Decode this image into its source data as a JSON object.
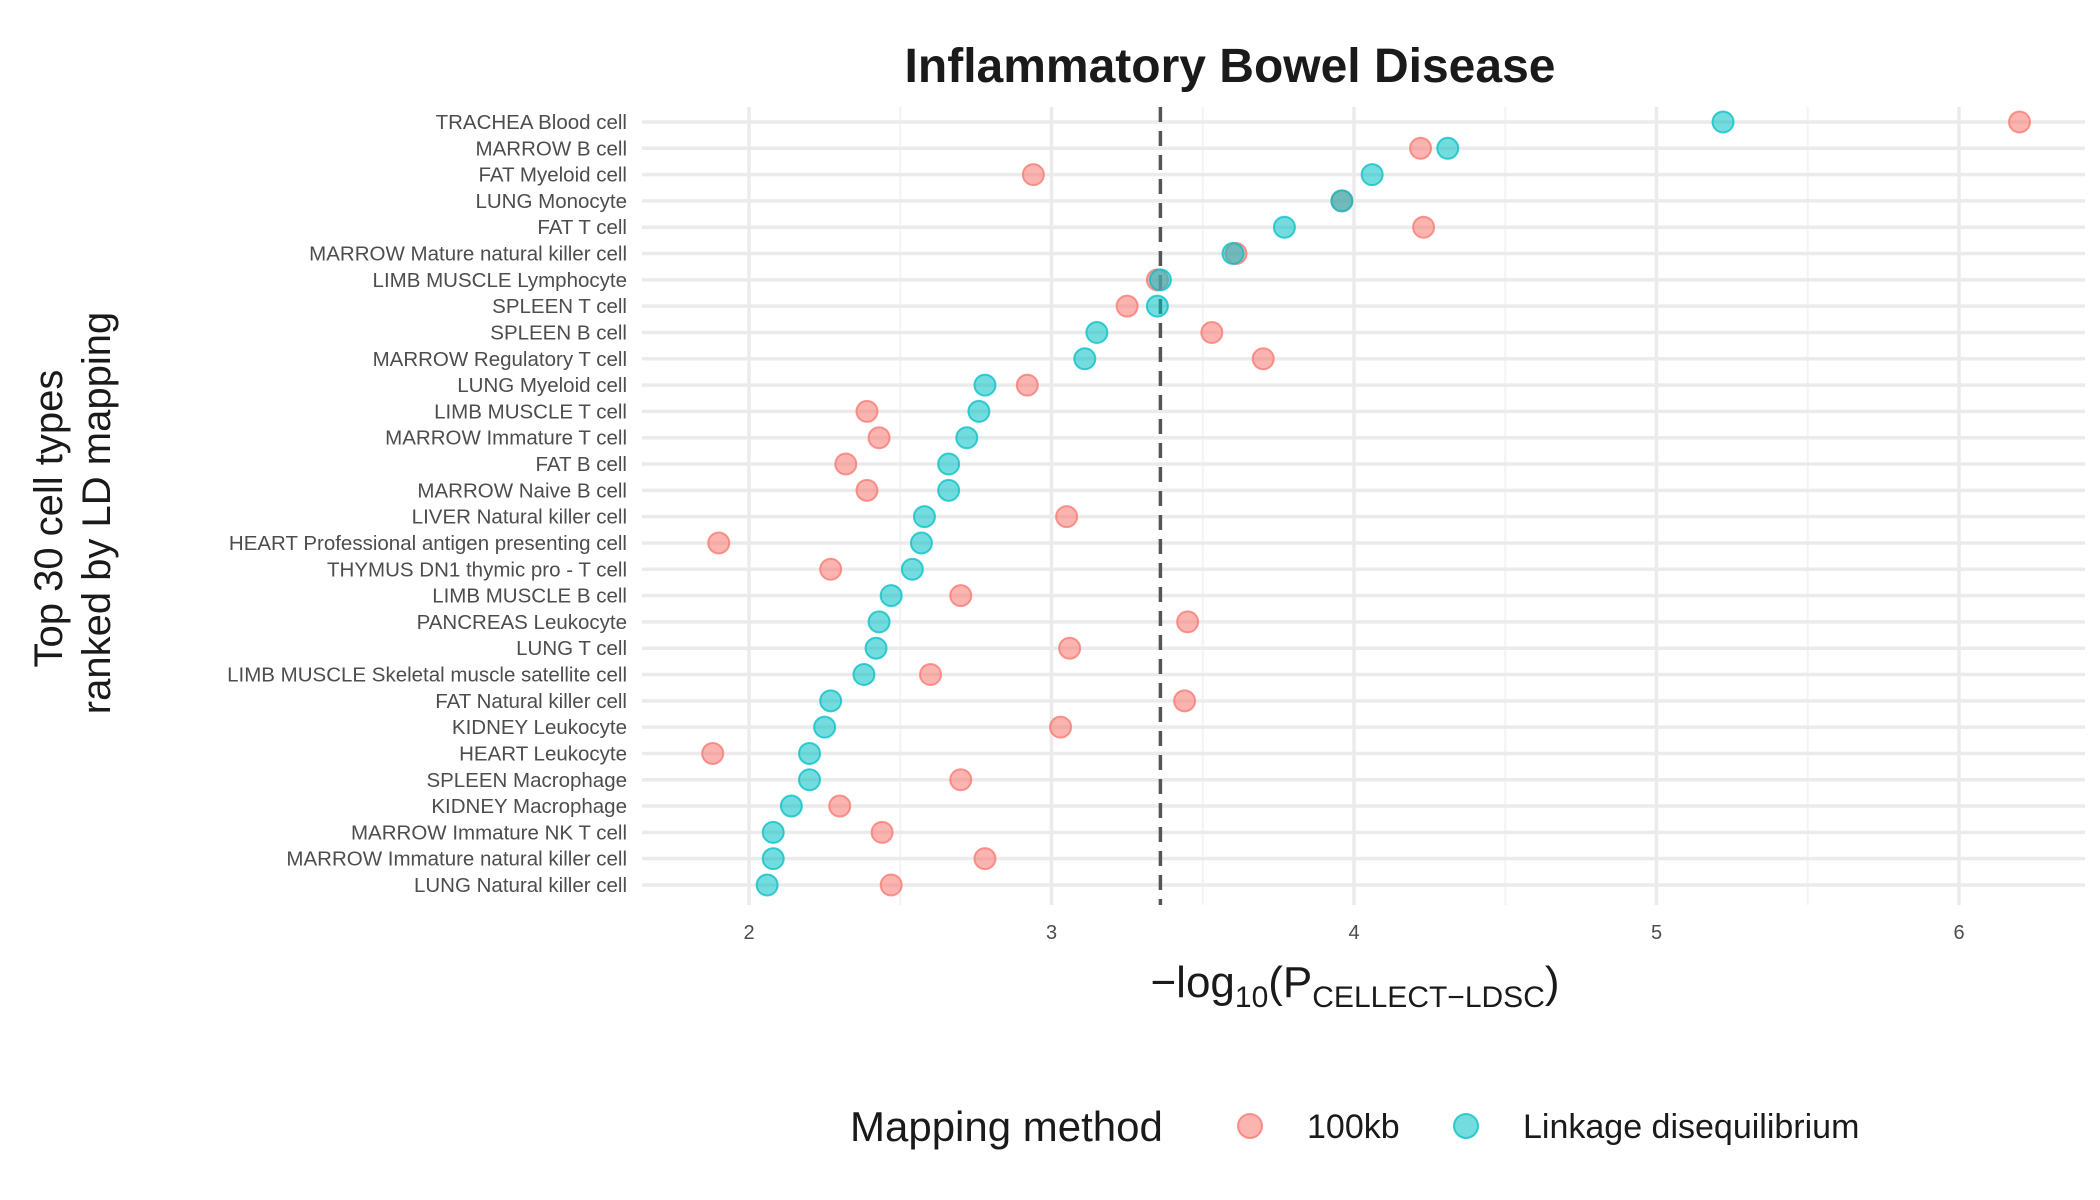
{
  "chart_data": {
    "type": "scatter",
    "title": "Inflammatory Bowel Disease",
    "ylabel_lines": [
      "Top 30 cell types",
      "ranked by LD mapping"
    ],
    "xlabel": {
      "prefix": "−log",
      "log_sub": "10",
      "open": "(P",
      "p_sub": "CELLECT−LDSC",
      "close": ")"
    },
    "xlim": [
      1.6,
      6.4
    ],
    "xticks": [
      2,
      3,
      4,
      5,
      6
    ],
    "xtick_labels": [
      "2",
      "3",
      "4",
      "5",
      "6"
    ],
    "reference_line_x": 3.36,
    "grid": true,
    "legend": {
      "title": "Mapping method",
      "position": "bottom",
      "entries": [
        {
          "label": "100kb",
          "color": "#F8766D"
        },
        {
          "label": "Linkage disequilibrium",
          "color": "#00BFC4"
        }
      ]
    },
    "categories": [
      "TRACHEA Blood cell",
      "MARROW B cell",
      "FAT Myeloid cell",
      "LUNG Monocyte",
      "FAT T cell",
      "MARROW Mature natural killer cell",
      "LIMB MUSCLE Lymphocyte",
      "SPLEEN T cell",
      "SPLEEN B cell",
      "MARROW Regulatory T cell",
      "LUNG Myeloid cell",
      "LIMB MUSCLE T cell",
      "MARROW Immature T cell",
      "FAT B cell",
      "MARROW Naive B cell",
      "LIVER Natural killer cell",
      "HEART Professional antigen presenting cell",
      "THYMUS DN1 thymic pro - T cell",
      "LIMB MUSCLE B cell",
      "PANCREAS Leukocyte",
      "LUNG T cell",
      "LIMB MUSCLE Skeletal muscle satellite cell",
      "FAT Natural killer cell",
      "KIDNEY Leukocyte",
      "HEART Leukocyte",
      "SPLEEN Macrophage",
      "KIDNEY Macrophage",
      "MARROW Immature NK T cell",
      "MARROW Immature natural killer cell",
      "LUNG Natural killer cell"
    ],
    "series": [
      {
        "name": "100kb",
        "color": "#F8766D",
        "values": [
          6.2,
          4.22,
          2.94,
          3.96,
          4.23,
          3.61,
          3.35,
          3.25,
          3.53,
          3.7,
          2.92,
          2.39,
          2.43,
          2.32,
          2.39,
          3.05,
          1.9,
          2.27,
          2.7,
          3.45,
          3.06,
          2.6,
          3.44,
          3.03,
          1.88,
          2.7,
          2.3,
          2.44,
          2.78,
          2.47
        ]
      },
      {
        "name": "Linkage disequilibrium",
        "color": "#00BFC4",
        "values": [
          5.22,
          4.31,
          4.06,
          3.96,
          3.77,
          3.6,
          3.36,
          3.35,
          3.15,
          3.11,
          2.78,
          2.76,
          2.72,
          2.66,
          2.66,
          2.58,
          2.57,
          2.54,
          2.47,
          2.43,
          2.42,
          2.38,
          2.27,
          2.25,
          2.2,
          2.2,
          2.14,
          2.08,
          2.08,
          2.06
        ]
      }
    ]
  }
}
